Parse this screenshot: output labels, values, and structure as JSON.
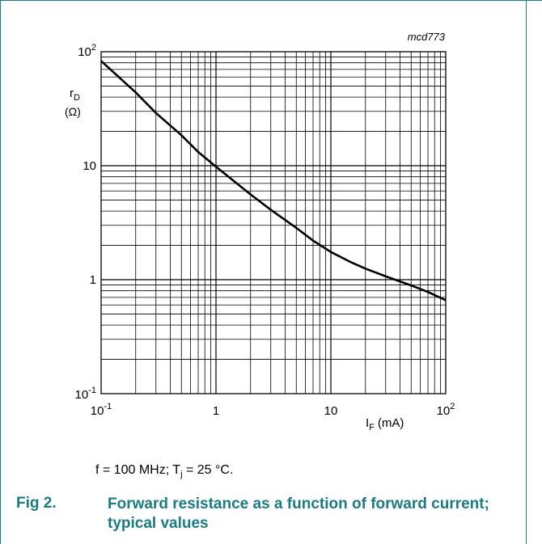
{
  "chart_data": {
    "type": "line",
    "code": "mcd773",
    "xscale": "log",
    "yscale": "log",
    "xlim": [
      0.1,
      100
    ],
    "ylim": [
      0.1,
      100
    ],
    "x_ticks": [
      {
        "value": 0.1,
        "base": "10",
        "exp": "-1"
      },
      {
        "value": 1,
        "base": "1",
        "exp": ""
      },
      {
        "value": 10,
        "base": "10",
        "exp": ""
      },
      {
        "value": 100,
        "base": "10",
        "exp": "2"
      }
    ],
    "y_ticks": [
      {
        "value": 100,
        "base": "10",
        "exp": "2"
      },
      {
        "value": 10,
        "base": "10",
        "exp": ""
      },
      {
        "value": 1,
        "base": "1",
        "exp": ""
      },
      {
        "value": 0.1,
        "base": "10",
        "exp": "-1"
      }
    ],
    "ylabel": {
      "symbol": "r",
      "sub": "D",
      "unit": "(Ω)"
    },
    "xlabel": {
      "symbol": "I",
      "sub": "F",
      "unit": "(mA)"
    },
    "grid": true,
    "series": [
      {
        "x": [
          0.1,
          0.2,
          0.3,
          0.5,
          0.7,
          1,
          2,
          3,
          5,
          7,
          10,
          15,
          20,
          30,
          50,
          70,
          100
        ],
        "y": [
          83,
          44,
          29,
          18.5,
          13.2,
          9.8,
          5.6,
          4.1,
          2.85,
          2.2,
          1.75,
          1.42,
          1.25,
          1.07,
          0.89,
          0.78,
          0.66
        ]
      }
    ]
  },
  "note": {
    "text_a": "f = 100 MHz; T",
    "sub": "j",
    "text_b": " = 25 °C."
  },
  "figure": {
    "number": "Fig 2.",
    "caption": "Forward resistance as a function of forward current; typical values"
  },
  "colors": {
    "accent": "#1b7b85",
    "line": "#000000",
    "grid": "#000000"
  }
}
